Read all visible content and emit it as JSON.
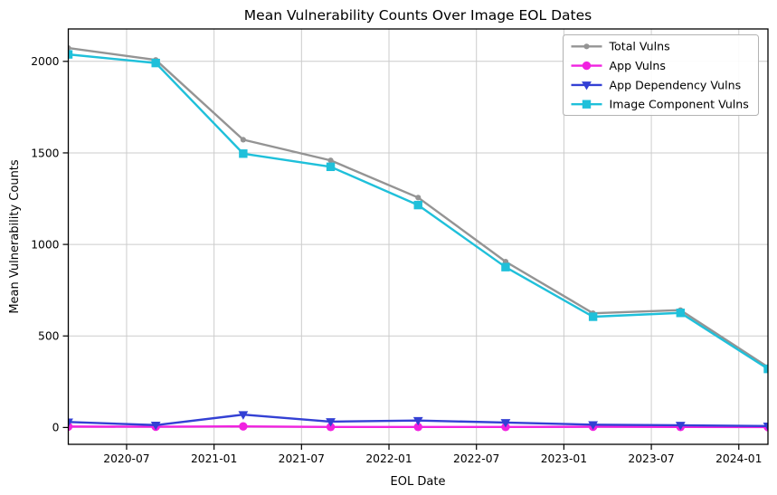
{
  "title": "Mean Vulnerability Counts Over Image EOL Dates",
  "chart_data": {
    "type": "line",
    "title": "Mean Vulnerability Counts Over Image EOL Dates",
    "xlabel": "EOL Date",
    "ylabel": "Mean Vulnerability Counts",
    "x": [
      "2020-03",
      "2020-09",
      "2021-03",
      "2021-09",
      "2022-03",
      "2022-09",
      "2023-03",
      "2023-09",
      "2024-03"
    ],
    "series": [
      {
        "name": "Total Vulns",
        "color": "#949494",
        "marker": "circle-small",
        "values": [
          2073,
          2008,
          1572,
          1459,
          1256,
          906,
          624,
          641,
          330
        ]
      },
      {
        "name": "App Vulns",
        "color": "#f122e0",
        "marker": "circle",
        "values": [
          5,
          4,
          6,
          3,
          3,
          3,
          4,
          3,
          2
        ]
      },
      {
        "name": "App Dependency Vulns",
        "color": "#3340d4",
        "marker": "triangle-down",
        "values": [
          30,
          13,
          70,
          32,
          38,
          27,
          15,
          12,
          8
        ]
      },
      {
        "name": "Image Component Vulns",
        "color": "#1fc0da",
        "marker": "square",
        "values": [
          2038,
          1991,
          1496,
          1424,
          1215,
          876,
          605,
          626,
          320
        ]
      }
    ],
    "x_tick_labels": [
      "2020-07",
      "2021-01",
      "2021-07",
      "2022-01",
      "2022-07",
      "2023-01",
      "2023-07",
      "2024-01"
    ],
    "y_ticks": [
      0,
      500,
      1000,
      1500,
      2000
    ],
    "y_tick_labels": [
      "0",
      "500",
      "1000",
      "1500",
      "2000"
    ],
    "ylim": [
      -92,
      2177
    ],
    "grid": true,
    "grid_color": "#cccccc",
    "background_color": "#ffffff",
    "spine_color": "#000000",
    "legend_position": "upper right",
    "legend_border_color": "#b3b3b3"
  }
}
